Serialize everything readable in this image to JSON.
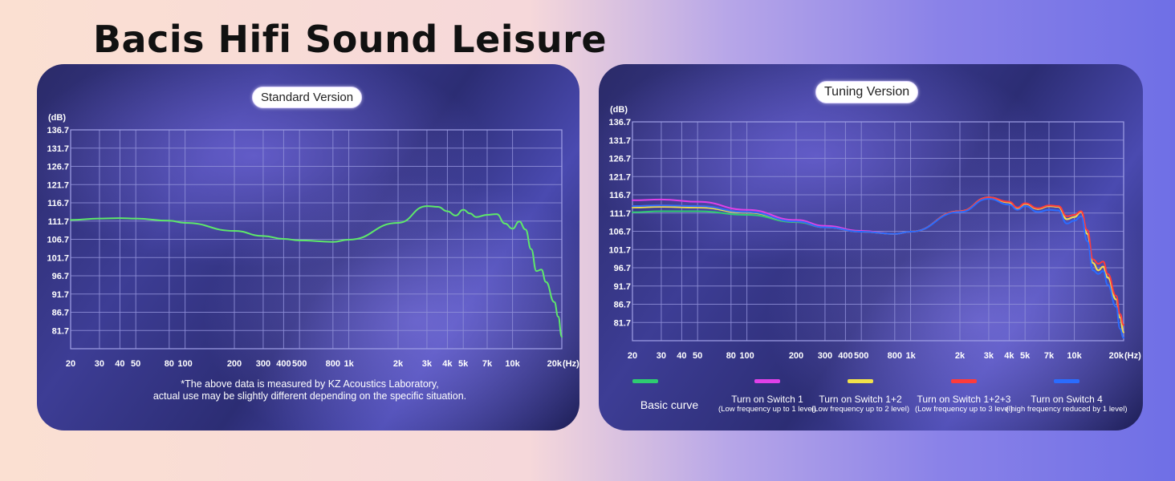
{
  "headline": "Bacis Hifi Sound Leisure",
  "left_panel": {
    "pill": "Standard Version",
    "note_line1": "*The above data is measured by KZ Acoustics Laboratory,",
    "note_line2": "actual use may be slightly different depending on the specific situation."
  },
  "right_panel": {
    "pill": "Tuning Version"
  },
  "chart_data": [
    {
      "type": "line",
      "title": "Standard Version",
      "ylabel": "(dB)",
      "xlabel": "(Hz)",
      "x_scale": "log",
      "xlim": [
        20,
        20000
      ],
      "ylim": [
        76.7,
        136.7
      ],
      "y_ticks": [
        "136.7",
        "131.7",
        "126.7",
        "121.7",
        "116.7",
        "111.7",
        "106.7",
        "101.7",
        "96.7",
        "91.7",
        "86.7",
        "81.7"
      ],
      "x_ticks": [
        {
          "value": 20,
          "label": "20"
        },
        {
          "value": 30,
          "label": "30"
        },
        {
          "value": 40,
          "label": "40"
        },
        {
          "value": 50,
          "label": "50"
        },
        {
          "value": 80,
          "label": "80"
        },
        {
          "value": 100,
          "label": "100"
        },
        {
          "value": 200,
          "label": "200"
        },
        {
          "value": 300,
          "label": "300"
        },
        {
          "value": 400,
          "label": "400"
        },
        {
          "value": 500,
          "label": "500"
        },
        {
          "value": 800,
          "label": "800"
        },
        {
          "value": 1000,
          "label": "1k"
        },
        {
          "value": 2000,
          "label": "2k"
        },
        {
          "value": 3000,
          "label": "3k"
        },
        {
          "value": 4000,
          "label": "4k"
        },
        {
          "value": 5000,
          "label": "5k"
        },
        {
          "value": 7000,
          "label": "7k"
        },
        {
          "value": 10000,
          "label": "10k"
        },
        {
          "value": 20000,
          "label": "20k"
        }
      ],
      "series": [
        {
          "name": "Standard",
          "color": "#5ee86a",
          "points": [
            [
              20,
              112.0
            ],
            [
              30,
              112.4
            ],
            [
              40,
              112.5
            ],
            [
              50,
              112.4
            ],
            [
              80,
              111.8
            ],
            [
              100,
              111.2
            ],
            [
              200,
              109.0
            ],
            [
              300,
              107.6
            ],
            [
              400,
              106.8
            ],
            [
              500,
              106.4
            ],
            [
              800,
              106.0
            ],
            [
              1000,
              106.6
            ],
            [
              2000,
              111.2
            ],
            [
              3000,
              115.8
            ],
            [
              3500,
              115.6
            ],
            [
              4000,
              114.4
            ],
            [
              4500,
              113.2
            ],
            [
              5000,
              114.8
            ],
            [
              5500,
              113.8
            ],
            [
              6000,
              112.8
            ],
            [
              7000,
              113.4
            ],
            [
              8000,
              113.6
            ],
            [
              9000,
              111.0
            ],
            [
              10000,
              109.6
            ],
            [
              11000,
              111.6
            ],
            [
              12000,
              109.4
            ],
            [
              13000,
              104.0
            ],
            [
              14000,
              98.0
            ],
            [
              15000,
              98.4
            ],
            [
              16000,
              95.0
            ],
            [
              18000,
              89.5
            ],
            [
              19000,
              85.5
            ],
            [
              20000,
              80.0
            ]
          ]
        }
      ]
    },
    {
      "type": "line",
      "title": "Tuning Version",
      "ylabel": "(dB)",
      "xlabel": "(Hz)",
      "x_scale": "log",
      "xlim": [
        20,
        20000
      ],
      "ylim": [
        76.7,
        136.7
      ],
      "y_ticks": [
        "136.7",
        "131.7",
        "126.7",
        "121.7",
        "116.7",
        "111.7",
        "106.7",
        "101.7",
        "96.7",
        "91.7",
        "86.7",
        "81.7"
      ],
      "x_ticks": [
        {
          "value": 20,
          "label": "20"
        },
        {
          "value": 30,
          "label": "30"
        },
        {
          "value": 40,
          "label": "40"
        },
        {
          "value": 50,
          "label": "50"
        },
        {
          "value": 80,
          "label": "80"
        },
        {
          "value": 100,
          "label": "100"
        },
        {
          "value": 200,
          "label": "200"
        },
        {
          "value": 300,
          "label": "300"
        },
        {
          "value": 400,
          "label": "400"
        },
        {
          "value": 500,
          "label": "500"
        },
        {
          "value": 800,
          "label": "800"
        },
        {
          "value": 1000,
          "label": "1k"
        },
        {
          "value": 2000,
          "label": "2k"
        },
        {
          "value": 3000,
          "label": "3k"
        },
        {
          "value": 4000,
          "label": "4k"
        },
        {
          "value": 5000,
          "label": "5k"
        },
        {
          "value": 7000,
          "label": "7k"
        },
        {
          "value": 10000,
          "label": "10k"
        },
        {
          "value": 20000,
          "label": "20k"
        }
      ],
      "series": [
        {
          "name": "Basic curve",
          "sub": "",
          "color": "#2ecc71",
          "points": [
            [
              20,
              111.9
            ],
            [
              30,
              112.2
            ],
            [
              50,
              112.2
            ],
            [
              100,
              111.2
            ],
            [
              200,
              109.2
            ],
            [
              300,
              107.8
            ],
            [
              500,
              106.6
            ],
            [
              800,
              106.0
            ],
            [
              1000,
              106.6
            ],
            [
              2000,
              112.2
            ],
            [
              3000,
              116.0
            ],
            [
              4000,
              114.6
            ],
            [
              4500,
              113.0
            ],
            [
              5000,
              114.2
            ],
            [
              6000,
              112.8
            ],
            [
              7000,
              113.6
            ],
            [
              8000,
              113.4
            ],
            [
              9000,
              110.0
            ],
            [
              10000,
              110.6
            ],
            [
              11000,
              112.0
            ],
            [
              12000,
              106.0
            ],
            [
              13000,
              98.0
            ],
            [
              14000,
              96.0
            ],
            [
              15000,
              97.0
            ],
            [
              16000,
              94.0
            ],
            [
              18000,
              88.0
            ],
            [
              19000,
              83.0
            ],
            [
              20000,
              79.0
            ]
          ]
        },
        {
          "name": "Turn on Switch 1",
          "sub": "(Low frequency up to 1 level)",
          "color": "#e040e8",
          "points": [
            [
              20,
              115.2
            ],
            [
              30,
              115.4
            ],
            [
              50,
              114.8
            ],
            [
              100,
              112.6
            ],
            [
              200,
              109.8
            ],
            [
              300,
              108.2
            ],
            [
              500,
              106.8
            ],
            [
              800,
              106.0
            ],
            [
              1000,
              106.6
            ],
            [
              2000,
              112.2
            ],
            [
              3000,
              116.0
            ],
            [
              4000,
              114.6
            ],
            [
              4500,
              113.0
            ],
            [
              5000,
              114.2
            ],
            [
              6000,
              112.8
            ],
            [
              7000,
              113.6
            ],
            [
              8000,
              113.4
            ],
            [
              9000,
              110.0
            ],
            [
              10000,
              110.6
            ],
            [
              11000,
              112.0
            ],
            [
              12000,
              106.0
            ],
            [
              13000,
              98.0
            ],
            [
              14000,
              96.0
            ],
            [
              15000,
              97.0
            ],
            [
              16000,
              94.0
            ],
            [
              18000,
              88.0
            ],
            [
              19000,
              83.0
            ],
            [
              20000,
              79.0
            ]
          ]
        },
        {
          "name": "Turn on Switch 1+2",
          "sub": "(Low frequency up to 2 level)",
          "color": "#f2e24a",
          "points": [
            [
              20,
              113.2
            ],
            [
              30,
              113.4
            ],
            [
              50,
              113.2
            ],
            [
              100,
              111.8
            ],
            [
              200,
              109.4
            ],
            [
              300,
              107.8
            ],
            [
              500,
              106.6
            ],
            [
              800,
              106.0
            ],
            [
              1000,
              106.6
            ],
            [
              2000,
              112.2
            ],
            [
              3000,
              116.0
            ],
            [
              4000,
              114.6
            ],
            [
              4500,
              113.0
            ],
            [
              5000,
              114.2
            ],
            [
              6000,
              112.8
            ],
            [
              7000,
              113.6
            ],
            [
              8000,
              113.4
            ],
            [
              9000,
              110.0
            ],
            [
              10000,
              110.6
            ],
            [
              11000,
              112.0
            ],
            [
              12000,
              106.0
            ],
            [
              13000,
              98.0
            ],
            [
              14000,
              96.0
            ],
            [
              15000,
              97.0
            ],
            [
              16000,
              94.0
            ],
            [
              18000,
              88.0
            ],
            [
              19000,
              83.0
            ],
            [
              20000,
              79.0
            ]
          ]
        },
        {
          "name": "Turn on Switch 1+2+3",
          "sub": "(Low frequency up to 3 level)",
          "color": "#ff3b3b",
          "points": [
            [
              20,
              113.6
            ],
            [
              30,
              113.8
            ],
            [
              50,
              113.6
            ],
            [
              100,
              112.0
            ],
            [
              200,
              109.4
            ],
            [
              300,
              107.8
            ],
            [
              500,
              106.6
            ],
            [
              800,
              106.0
            ],
            [
              1000,
              106.6
            ],
            [
              2000,
              112.2
            ],
            [
              3000,
              116.0
            ],
            [
              4000,
              114.8
            ],
            [
              4500,
              113.2
            ],
            [
              5000,
              114.4
            ],
            [
              6000,
              113.0
            ],
            [
              7000,
              113.8
            ],
            [
              8000,
              113.6
            ],
            [
              9000,
              110.8
            ],
            [
              10000,
              111.2
            ],
            [
              11000,
              112.2
            ],
            [
              12000,
              107.0
            ],
            [
              13000,
              99.0
            ],
            [
              14000,
              97.8
            ],
            [
              15000,
              98.4
            ],
            [
              16000,
              95.0
            ],
            [
              18000,
              89.0
            ],
            [
              19000,
              84.0
            ],
            [
              20000,
              81.0
            ]
          ]
        },
        {
          "name": "Turn on Switch 4",
          "sub": "( high frequency reduced by 1 level)",
          "color": "#2a6cff",
          "points": [
            [
              20,
              113.6
            ],
            [
              30,
              113.8
            ],
            [
              50,
              113.6
            ],
            [
              100,
              112.0
            ],
            [
              200,
              109.4
            ],
            [
              300,
              107.8
            ],
            [
              500,
              106.6
            ],
            [
              800,
              106.0
            ],
            [
              1000,
              106.6
            ],
            [
              2000,
              112.0
            ],
            [
              3000,
              115.6
            ],
            [
              4000,
              114.0
            ],
            [
              4500,
              112.6
            ],
            [
              5000,
              113.6
            ],
            [
              6000,
              112.0
            ],
            [
              7000,
              112.6
            ],
            [
              8000,
              112.4
            ],
            [
              9000,
              108.8
            ],
            [
              10000,
              109.6
            ],
            [
              11000,
              110.8
            ],
            [
              12000,
              104.0
            ],
            [
              13000,
              96.0
            ],
            [
              14000,
              95.0
            ],
            [
              15000,
              95.8
            ],
            [
              16000,
              92.0
            ],
            [
              18000,
              86.0
            ],
            [
              19000,
              80.0
            ],
            [
              20000,
              77.5
            ]
          ]
        }
      ]
    }
  ]
}
